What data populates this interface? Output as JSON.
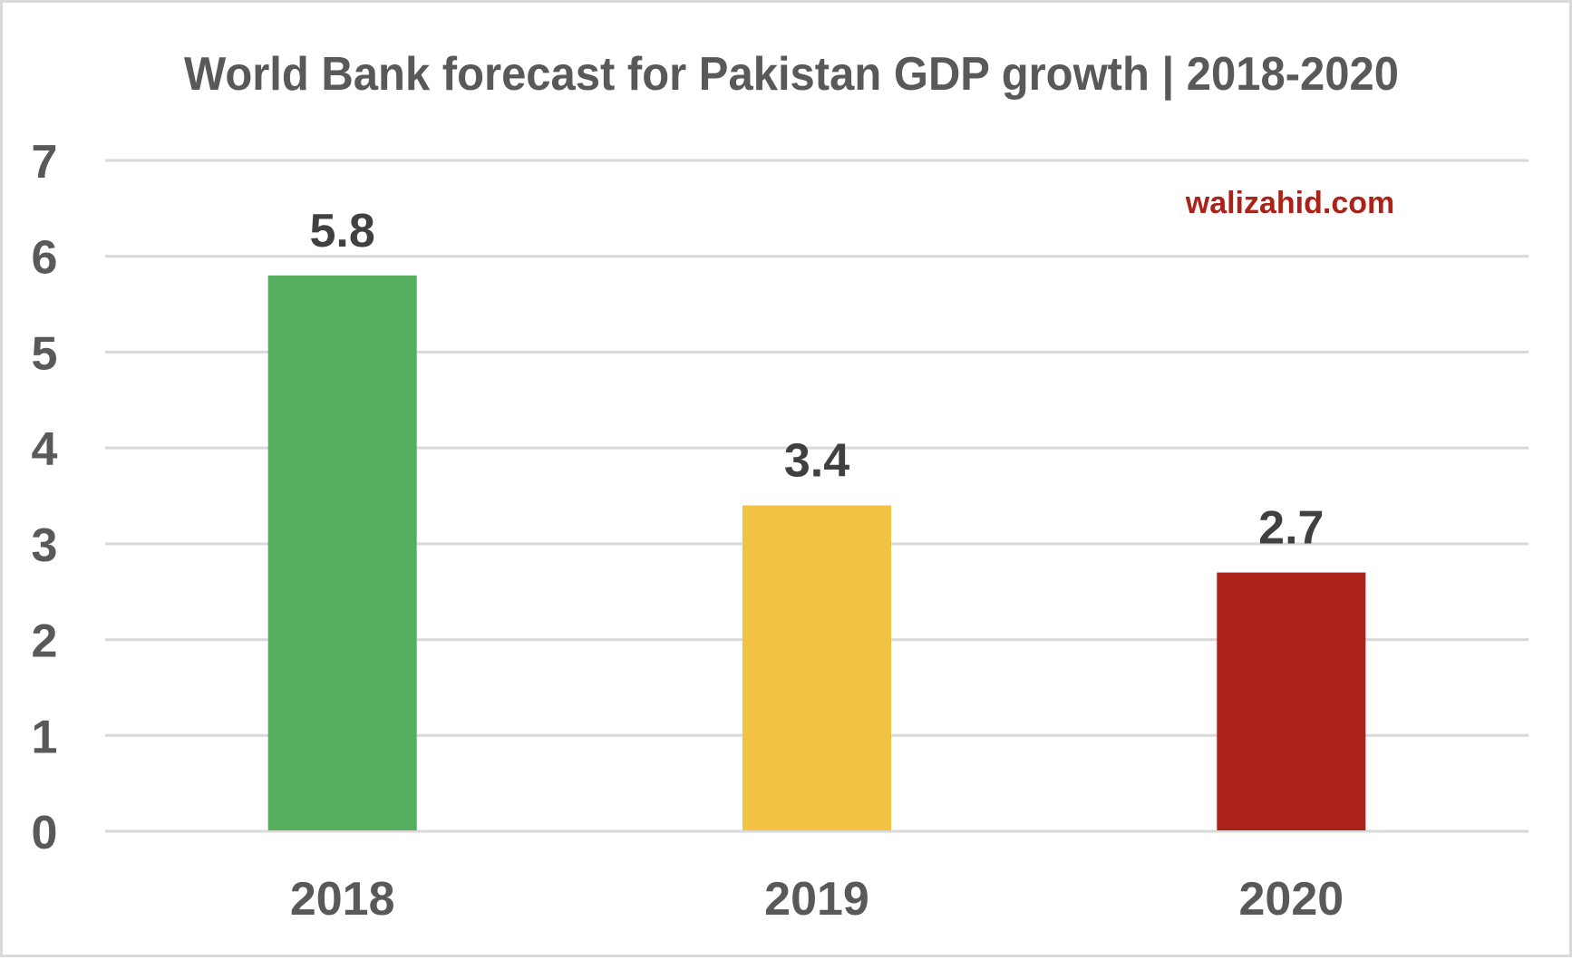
{
  "chart_data": {
    "type": "bar",
    "title": "World Bank forecast for Pakistan GDP growth | 2018-2020",
    "xlabel": "",
    "ylabel": "",
    "categories": [
      "2018",
      "2019",
      "2020"
    ],
    "values": [
      5.8,
      3.4,
      2.7
    ],
    "data_labels": [
      "5.8",
      "3.4",
      "2.7"
    ],
    "bar_colors": [
      "#55ad5e",
      "#f2c244",
      "#ab2318"
    ],
    "ylim": [
      0,
      7
    ],
    "yticks": [
      "0",
      "1",
      "2",
      "3",
      "4",
      "5",
      "6",
      "7"
    ],
    "grid": true,
    "legend": "none"
  },
  "watermark": {
    "text": "walizahid.com",
    "color": "#ab2318"
  }
}
